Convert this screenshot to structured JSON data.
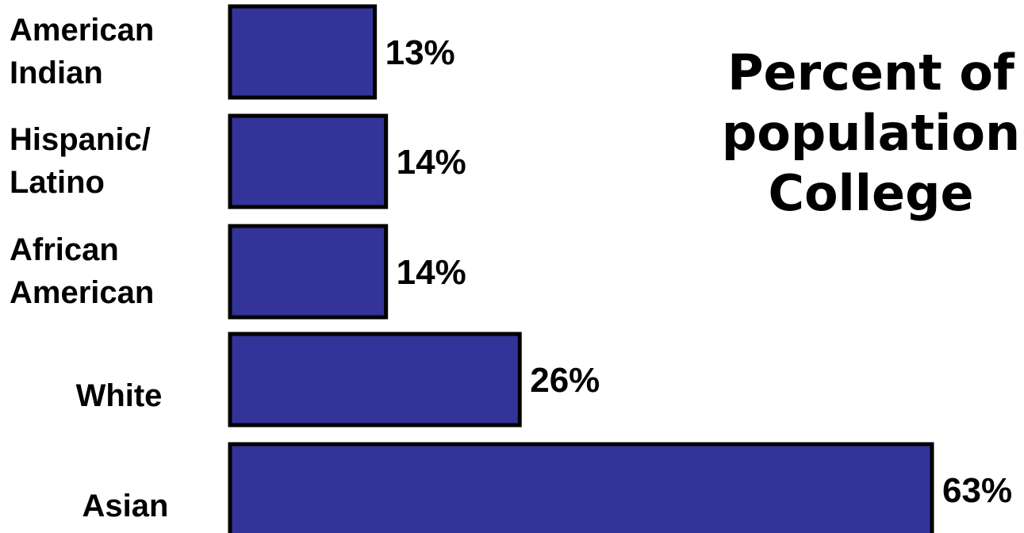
{
  "chart_data": {
    "type": "bar",
    "orientation": "horizontal",
    "title_lines": [
      "Percent of",
      "population",
      "College"
    ],
    "categories": [
      [
        "American",
        "Indian"
      ],
      [
        "Hispanic/",
        "Latino"
      ],
      [
        "African",
        "American"
      ],
      [
        "White"
      ],
      [
        "Asian"
      ]
    ],
    "values": [
      13,
      14,
      14,
      26,
      63
    ],
    "value_labels": [
      "13%",
      "14%",
      "14%",
      "26%",
      "63%"
    ],
    "xlim": [
      0,
      63
    ],
    "bar_color": "#333399",
    "bar_outline_color": "#000000",
    "grid": false,
    "legend": "none"
  }
}
